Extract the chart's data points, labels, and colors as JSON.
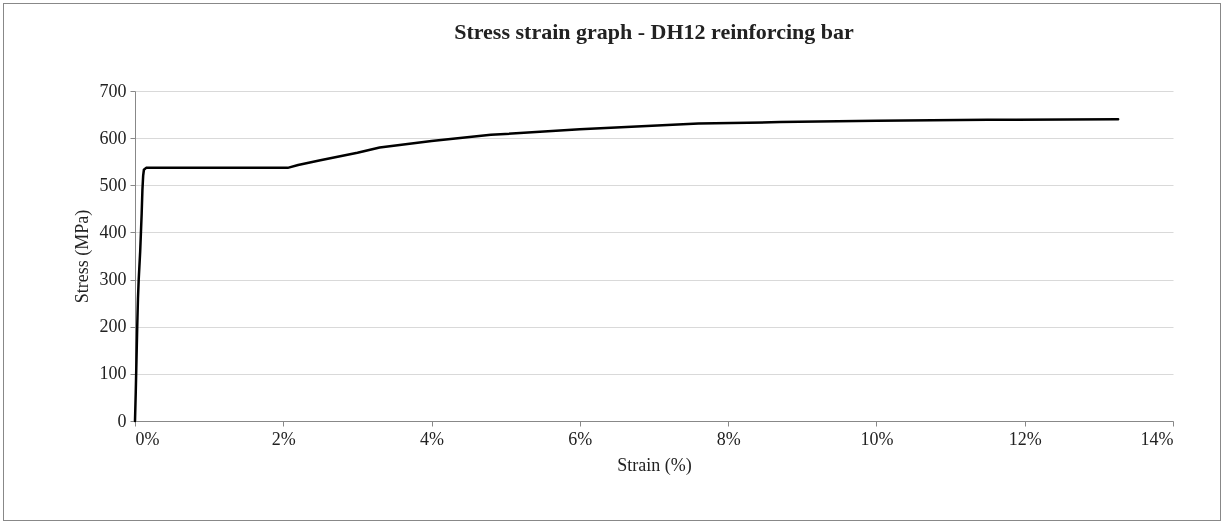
{
  "chart_data": {
    "type": "line",
    "title": "Stress strain graph - DH12 reinforcing bar",
    "xlabel": "Strain (%)",
    "ylabel": "Stress (MPa)",
    "series": [
      {
        "color": "#000000",
        "x": [
          0,
          0.01,
          0.02,
          0.03,
          0.04,
          0.05,
          0.07,
          0.08,
          0.09,
          0.1,
          0.11,
          0.12,
          0.15,
          0.3,
          1.0,
          2.06,
          2.2,
          2.5,
          3.0,
          3.3,
          4.0,
          4.8,
          6.0,
          7.6,
          8.7,
          10.0,
          11.5,
          13.26
        ],
        "values": [
          0,
          60,
          130,
          200,
          260,
          300,
          360,
          400,
          440,
          490,
          520,
          533,
          537,
          537,
          537,
          537,
          543,
          553,
          569,
          580,
          594,
          607,
          619,
          631,
          634,
          637,
          639,
          640
        ]
      }
    ],
    "xlim": [
      0,
      14
    ],
    "xticks": [
      {
        "value": 0,
        "label": "0%"
      },
      {
        "value": 2,
        "label": "2%"
      },
      {
        "value": 4,
        "label": "4%"
      },
      {
        "value": 6,
        "label": "6%"
      },
      {
        "value": 8,
        "label": "8%"
      },
      {
        "value": 10,
        "label": "10%"
      },
      {
        "value": 12,
        "label": "12%"
      },
      {
        "value": 14,
        "label": "14%"
      }
    ],
    "ylim": [
      0,
      700
    ],
    "yticks": [
      0,
      100,
      200,
      300,
      400,
      500,
      600,
      700
    ],
    "grid": "y",
    "marker": "none",
    "line_style": "solid"
  }
}
